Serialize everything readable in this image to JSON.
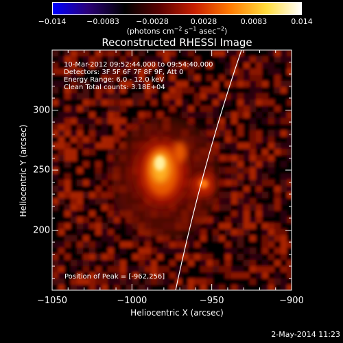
{
  "colorbar": {
    "tick_labels": [
      "−0.014",
      "−0.0083",
      "−0.0028",
      "0.0028",
      "0.0083",
      "0.014"
    ],
    "units_prefix": "(photons cm",
    "units_exp1": "−2",
    "units_mid1": " s",
    "units_exp2": "−1",
    "units_mid2": " asec",
    "units_exp3": "−2",
    "units_suffix": ")"
  },
  "title": "Reconstructed RHESSI Image",
  "info": {
    "time_range": "10-Mar-2012 09:52:44.000 to 09:54:40.000",
    "detectors": "Detectors: 3F 5F 6F 7F 8F 9F, Att 0",
    "energy_range": "Energy Range: 6.0 - 12.0 keV",
    "clean": "Clean     Total counts: 3.18E+04",
    "peak_position": "Position of Peak = [-962,256]"
  },
  "x_axis": {
    "label": "Heliocentric X (arcsec)",
    "range": [
      -1050,
      -900
    ],
    "ticks": [
      {
        "value": -1050,
        "label": "−1050"
      },
      {
        "value": -1000,
        "label": "−1000"
      },
      {
        "value": -950,
        "label": "−950"
      },
      {
        "value": -900,
        "label": "−900"
      }
    ]
  },
  "y_axis": {
    "label": "Heliocentric Y (arcsec)",
    "range": [
      150,
      350
    ],
    "ticks": [
      {
        "value": 200,
        "label": "200"
      },
      {
        "value": 250,
        "label": "250"
      },
      {
        "value": 300,
        "label": "300"
      }
    ]
  },
  "timestamp": "2-May-2014 11:23",
  "colors": {
    "background": "#000000",
    "foreground": "#ffffff",
    "colormap": [
      "#0000ff",
      "#2a0078",
      "#000000",
      "#5a0000",
      "#c81e00",
      "#ff7800",
      "#ffdc3c",
      "#ffffff"
    ]
  }
}
